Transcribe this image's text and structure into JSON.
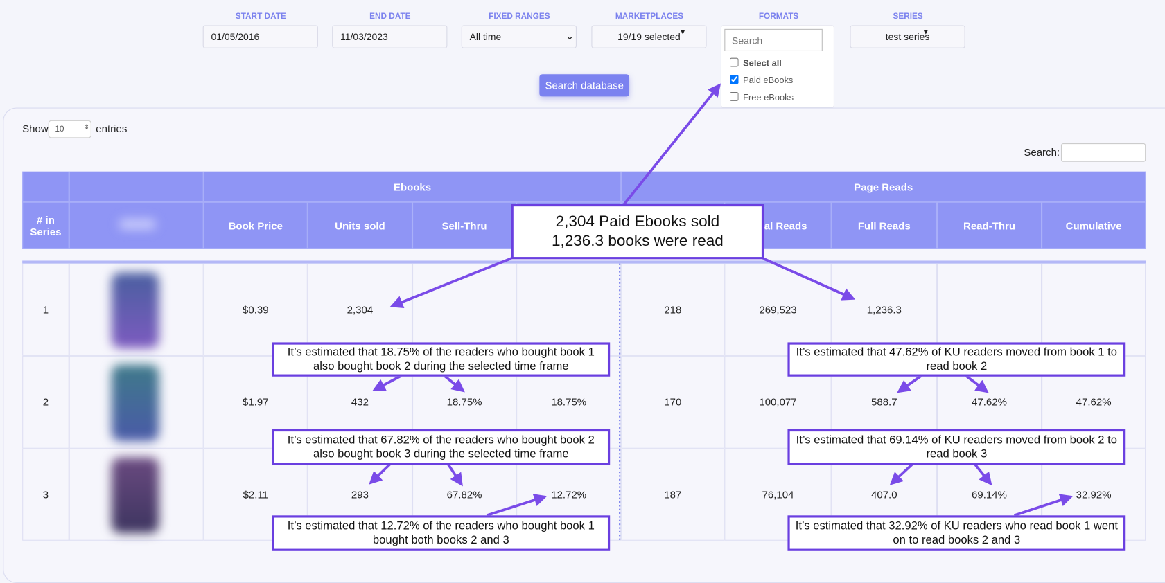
{
  "filters": [
    {
      "label": "START DATE",
      "value": "01/05/2016"
    },
    {
      "label": "END DATE",
      "value": "11/03/2023"
    },
    {
      "label": "FIXED RANGES",
      "value": "All time"
    },
    {
      "label": "MARKETPLACES",
      "value": "19/19 selected"
    },
    {
      "label": "FORMATS",
      "search_placeholder": "Search",
      "options": [
        {
          "label": "Select all",
          "checked": false
        },
        {
          "label": "Paid eBooks",
          "checked": true
        },
        {
          "label": "Free eBooks",
          "checked": false
        }
      ]
    },
    {
      "label": "SERIES",
      "value": "test series"
    }
  ],
  "search_button": "Search database",
  "show": {
    "before": "Show",
    "value": "10",
    "after": "entries"
  },
  "search_label": "Search:",
  "table": {
    "header": {
      "series_no": "# in Series",
      "groups": [
        "Ebooks",
        "Page Reads"
      ],
      "columns": [
        "Book Price",
        "Units sold",
        "Sell-Thru",
        null,
        null,
        "Total Reads",
        "Full Reads",
        "Read-Thru",
        "Cumulative"
      ]
    },
    "rows": [
      {
        "number": "1",
        "cells": [
          "$0.39",
          "2,304",
          null,
          null,
          "218",
          "269,523",
          "1,236.3",
          null,
          null
        ]
      },
      {
        "number": "2",
        "cells": [
          "$1.97",
          "432",
          "18.75%",
          "18.75%",
          "170",
          "100,077",
          "588.7",
          "47.62%",
          "47.62%"
        ]
      },
      {
        "number": "3",
        "cells": [
          "$2.11",
          "293",
          "67.82%",
          "12.72%",
          "187",
          "76,104",
          "407.0",
          "69.14%",
          "32.92%"
        ]
      }
    ]
  },
  "callout": {
    "lines": [
      "2,304 Paid Ebooks sold",
      "1,236.3 books were read"
    ]
  },
  "annotations": [
    {
      "lines": [
        "It’s estimated that 18.75% of the readers who bought book 1",
        "also bought book 2 during the selected time frame"
      ]
    },
    {
      "lines": [
        "It’s estimated that 47.62% of KU readers moved from book 1 to",
        "read book 2"
      ]
    },
    {
      "lines": [
        "It’s estimated that 67.82% of the readers who bought book 2",
        "also bought book 3 during the selected time frame"
      ]
    },
    {
      "lines": [
        "It’s estimated that 69.14% of KU readers moved from book 2 to",
        "read book 3"
      ]
    },
    {
      "lines": [
        "It’s estimated that 12.72% of the readers who bought book 1",
        "bought both books 2 and 3"
      ]
    },
    {
      "lines": [
        "It’s estimated that 32.92% of KU readers who read book 1 went",
        "on to read books 2 and 3"
      ]
    }
  ]
}
